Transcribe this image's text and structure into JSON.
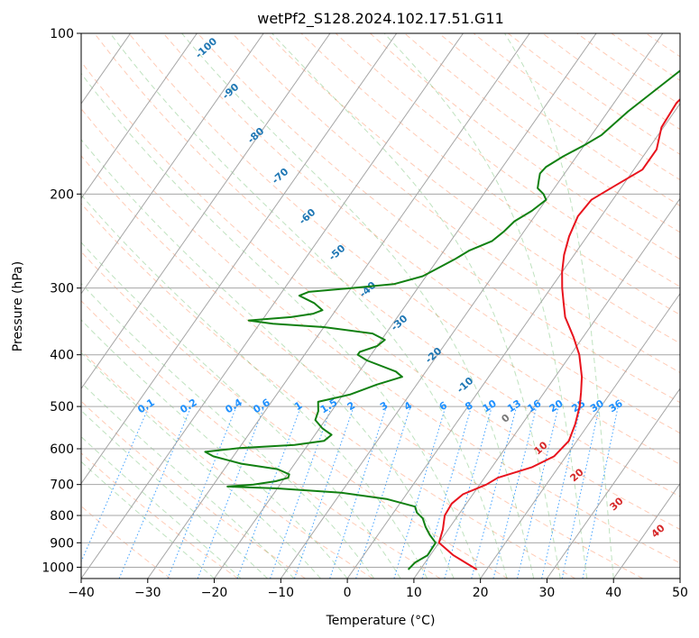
{
  "chart_data": {
    "type": "line",
    "title": "wetPf2_S128.2024.102.17.51.G11",
    "xlabel": "Temperature (°C)",
    "ylabel": "Pressure (hPa)",
    "xlim": [
      -40,
      50
    ],
    "ylim": [
      1050,
      100
    ],
    "yscale": "log",
    "grid": true,
    "x_ticks": [
      "−40",
      "−30",
      "−20",
      "−10",
      "0",
      "10",
      "20",
      "30",
      "40",
      "50"
    ],
    "x_tick_values": [
      -40,
      -30,
      -20,
      -10,
      0,
      10,
      20,
      30,
      40,
      50
    ],
    "y_ticks": [
      "100",
      "200",
      "300",
      "400",
      "500",
      "600",
      "700",
      "800",
      "900",
      "1000"
    ],
    "y_tick_values": [
      100,
      200,
      300,
      400,
      500,
      600,
      700,
      800,
      900,
      1000
    ],
    "series": [
      {
        "role": "temperature",
        "color": "#e8131d",
        "points": [
          [
            1010,
            18.5
          ],
          [
            950,
            13.5
          ],
          [
            900,
            10.0
          ],
          [
            850,
            9.2
          ],
          [
            800,
            8.0
          ],
          [
            760,
            7.8
          ],
          [
            730,
            8.5
          ],
          [
            700,
            11.0
          ],
          [
            680,
            12.0
          ],
          [
            650,
            16.0
          ],
          [
            620,
            18.2
          ],
          [
            580,
            18.8
          ],
          [
            540,
            18.0
          ],
          [
            500,
            16.8
          ],
          [
            470,
            15.5
          ],
          [
            440,
            14.0
          ],
          [
            400,
            11.3
          ],
          [
            370,
            8.5
          ],
          [
            340,
            5.2
          ],
          [
            320,
            3.5
          ],
          [
            300,
            1.7
          ],
          [
            280,
            0.0
          ],
          [
            260,
            -1.5
          ],
          [
            240,
            -2.7
          ],
          [
            220,
            -3.5
          ],
          [
            205,
            -3.2
          ],
          [
            195,
            -1.5
          ],
          [
            180,
            1.3
          ],
          [
            165,
            1.3
          ],
          [
            150,
            -0.3
          ],
          [
            135,
            -0.6
          ],
          [
            122,
            0.5
          ],
          [
            112,
            2.5
          ],
          [
            104,
            5.0
          ],
          [
            100,
            7.0
          ]
        ]
      },
      {
        "role": "dewpoint",
        "color": "#118011",
        "points": [
          [
            1010,
            8.2
          ],
          [
            980,
            8.5
          ],
          [
            950,
            9.6
          ],
          [
            900,
            9.5
          ],
          [
            870,
            7.8
          ],
          [
            840,
            6.3
          ],
          [
            810,
            5.0
          ],
          [
            790,
            3.5
          ],
          [
            770,
            2.6
          ],
          [
            745,
            -2.5
          ],
          [
            725,
            -10
          ],
          [
            712,
            -20
          ],
          [
            706,
            -27.7
          ],
          [
            700,
            -24
          ],
          [
            690,
            -21
          ],
          [
            680,
            -19.5
          ],
          [
            670,
            -19.7
          ],
          [
            655,
            -22
          ],
          [
            640,
            -28
          ],
          [
            620,
            -33
          ],
          [
            608,
            -34.7
          ],
          [
            598,
            -30
          ],
          [
            590,
            -22
          ],
          [
            580,
            -18
          ],
          [
            565,
            -17.5
          ],
          [
            550,
            -19.5
          ],
          [
            530,
            -21.5
          ],
          [
            510,
            -22
          ],
          [
            490,
            -23
          ],
          [
            475,
            -19
          ],
          [
            455,
            -16
          ],
          [
            440,
            -13
          ],
          [
            430,
            -14.5
          ],
          [
            410,
            -20
          ],
          [
            400,
            -22.0
          ],
          [
            395,
            -22
          ],
          [
            385,
            -20
          ],
          [
            375,
            -19.5
          ],
          [
            365,
            -22
          ],
          [
            355,
            -30
          ],
          [
            350,
            -38
          ],
          [
            345,
            -42
          ],
          [
            340,
            -36
          ],
          [
            335,
            -33
          ],
          [
            330,
            -32
          ],
          [
            320,
            -34
          ],
          [
            310,
            -37
          ],
          [
            305,
            -36
          ],
          [
            300,
            -30
          ],
          [
            295,
            -24
          ],
          [
            285,
            -20.5
          ],
          [
            275,
            -19
          ],
          [
            265,
            -17.5
          ],
          [
            255,
            -16.2
          ],
          [
            245,
            -13.8
          ],
          [
            235,
            -13
          ],
          [
            225,
            -12.5
          ],
          [
            215,
            -11
          ],
          [
            205,
            -10
          ],
          [
            200,
            -11
          ],
          [
            195,
            -12.5
          ],
          [
            188,
            -13.2
          ],
          [
            183,
            -13.7
          ],
          [
            178,
            -13.5
          ],
          [
            170,
            -12
          ],
          [
            162,
            -10
          ],
          [
            155,
            -8.5
          ],
          [
            140,
            -7
          ],
          [
            125,
            -4.7
          ],
          [
            112,
            -2.5
          ],
          [
            105,
            0.0
          ],
          [
            100,
            1.8
          ]
        ]
      }
    ],
    "reference_lines": {
      "isotherm_color": "#a6a6a6",
      "dry_adiabat_color": "#ffa07a",
      "moist_adiabat_color": "#2ca02c",
      "mixing_ratio_color": "#1e90ff",
      "lcl_color": "#d2b48c"
    },
    "moist_adiabat_labels": [
      "-100",
      "-90",
      "-80",
      "-70",
      "-60",
      "-50",
      "-40",
      "-30",
      "-20",
      "-10",
      "0",
      "10",
      "20",
      "30",
      "40"
    ],
    "mixing_ratio_labels": [
      "0.1",
      "0.2",
      "0.4",
      "0.6",
      "1",
      "1.5",
      "2",
      "3",
      "4",
      "6",
      "8",
      "10",
      "13",
      "16",
      "20",
      "25",
      "30",
      "36"
    ]
  }
}
